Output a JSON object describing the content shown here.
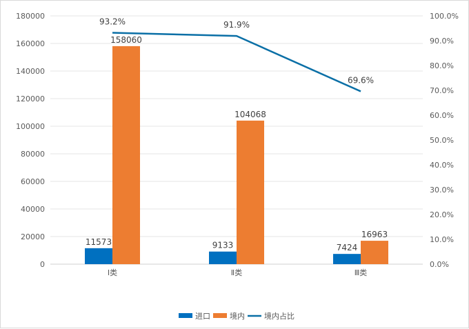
{
  "chart_data": {
    "type": "bar",
    "categories": [
      "Ⅰ类",
      "Ⅱ类",
      "Ⅲ类"
    ],
    "series": [
      {
        "name": "进口",
        "kind": "bar",
        "axis": "left",
        "color": "#0070C0",
        "values": [
          11573,
          9133,
          7424
        ]
      },
      {
        "name": "境内",
        "kind": "bar",
        "axis": "left",
        "color": "#ED7D31",
        "values": [
          158060,
          104068,
          16963
        ]
      },
      {
        "name": "境内占比",
        "kind": "line",
        "axis": "right",
        "color": "#0A6FA6",
        "values": [
          93.2,
          91.9,
          69.6
        ],
        "labels": [
          "93.2%",
          "91.9%",
          "69.6%"
        ]
      }
    ],
    "y_left": {
      "min": 0,
      "max": 180000,
      "step": 20000
    },
    "y_right": {
      "min": 0,
      "max": 100,
      "step": 10,
      "suffix": "%",
      "decimals": 1
    },
    "grid": true,
    "legend": "bottom"
  }
}
